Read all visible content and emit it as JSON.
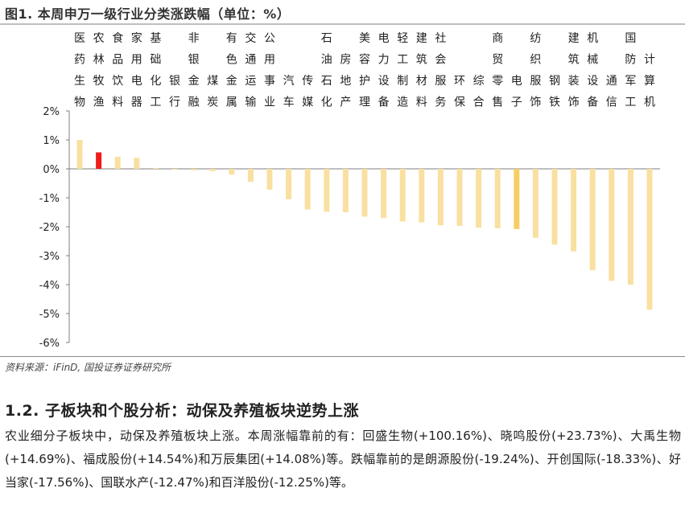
{
  "figure": {
    "title": "图1. 本周申万一级行业分类涨跌幅（单位：%）",
    "source": "资料来源：iFinD, 国投证券证券研究所"
  },
  "colors": {
    "bar_default": "#f9e0a0",
    "bar_highlight_red": "#ee1c1c",
    "bar_highlight_gold": "#f5cf66"
  },
  "chart_data": {
    "type": "bar",
    "ylim": [
      -6,
      2
    ],
    "yticks": [
      2,
      1,
      0,
      -1,
      -2,
      -3,
      -4,
      -5,
      -6
    ],
    "ytick_labels": [
      "2%",
      "1%",
      "0%",
      "-1%",
      "-2%",
      "-3%",
      "-4%",
      "-5%",
      "-6%"
    ],
    "grid": false,
    "categories": [
      "医药生物",
      "农林牧渔",
      "食品饮料",
      "家用电器",
      "基础化工",
      "银行",
      "非银金融",
      "煤炭",
      "有色金属",
      "交通运输",
      "公用事业",
      "汽车",
      "传媒",
      "石油石化",
      "房地产",
      "美容护理",
      "电力设备",
      "轻工制造",
      "建筑材料",
      "社会服务",
      "环保",
      "综合",
      "商贸零售",
      "电子",
      "纺织服饰",
      "钢铁",
      "建筑装饰",
      "机械设备",
      "通信",
      "国防军工",
      "计算机"
    ],
    "values": [
      1.0,
      0.57,
      0.42,
      0.38,
      0.02,
      -0.02,
      -0.05,
      -0.08,
      -0.2,
      -0.45,
      -0.72,
      -1.05,
      -1.4,
      -1.48,
      -1.5,
      -1.65,
      -1.7,
      -1.82,
      -1.85,
      -1.95,
      -1.97,
      -2.03,
      -2.05,
      -2.08,
      -2.38,
      -2.62,
      -2.85,
      -3.5,
      -3.87,
      -4.0,
      -4.87
    ],
    "highlight": {
      "农林牧渔": "red",
      "电子": "gold"
    }
  },
  "section": {
    "heading": "1.2. 子板块和个股分析：动保及养殖板块逆势上涨",
    "body": "农业细分子板块中，动保及养殖板块上涨。本周涨幅靠前的有：回盛生物(+100.16%)、晓鸣股份(+23.73%)、大禹生物(+14.69%)、福成股份(+14.54%)和万辰集团(+14.08%)等。跌幅靠前的是朗源股份(-19.24%)、开创国际(-18.33%)、好当家(-17.56%)、国联水产(-12.47%)和百洋股份(-12.25%)等。"
  }
}
